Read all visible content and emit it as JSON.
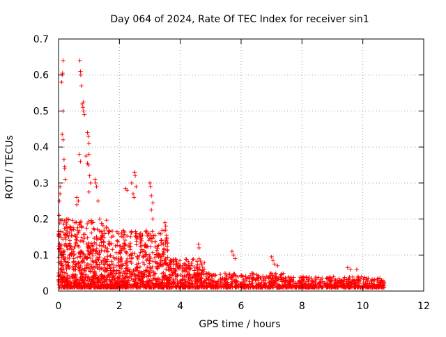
{
  "chart_data": {
    "type": "scatter",
    "title": "Day 064 of 2024, Rate Of TEC Index for receiver sin1",
    "xlabel": "GPS time / hours",
    "ylabel": "ROTI / TECUs",
    "xlim": [
      0,
      12
    ],
    "ylim": [
      0,
      0.7
    ],
    "xticks": [
      0,
      2,
      4,
      6,
      8,
      10,
      12
    ],
    "xtick_labels": [
      "0",
      "2",
      "4",
      "6",
      "8",
      "10",
      "12"
    ],
    "yticks": [
      0,
      0.1,
      0.2,
      0.3,
      0.4,
      0.5,
      0.6,
      0.7
    ],
    "ytick_labels": [
      "0",
      "0.1",
      "0.2",
      "0.3",
      "0.4",
      "0.5",
      "0.6",
      "0.7"
    ],
    "grid": true,
    "marker": "plus",
    "color": "#ff0000",
    "series": [
      {
        "name": "ROTI",
        "points": [
          [
            0.0,
            0.03
          ],
          [
            0.0,
            0.08
          ],
          [
            0.02,
            0.21
          ],
          [
            0.03,
            0.25
          ],
          [
            0.05,
            0.29
          ],
          [
            0.05,
            0.27
          ],
          [
            0.1,
            0.58
          ],
          [
            0.12,
            0.6
          ],
          [
            0.13,
            0.605
          ],
          [
            0.15,
            0.64
          ],
          [
            0.15,
            0.5
          ],
          [
            0.12,
            0.435
          ],
          [
            0.15,
            0.42
          ],
          [
            0.18,
            0.365
          ],
          [
            0.2,
            0.345
          ],
          [
            0.22,
            0.31
          ],
          [
            0.2,
            0.34
          ],
          [
            0.7,
            0.64
          ],
          [
            0.72,
            0.61
          ],
          [
            0.73,
            0.6
          ],
          [
            0.75,
            0.57
          ],
          [
            0.78,
            0.52
          ],
          [
            0.8,
            0.51
          ],
          [
            0.82,
            0.5
          ],
          [
            0.82,
            0.525
          ],
          [
            0.85,
            0.49
          ],
          [
            0.68,
            0.38
          ],
          [
            0.72,
            0.36
          ],
          [
            0.9,
            0.375
          ],
          [
            0.95,
            0.44
          ],
          [
            0.98,
            0.43
          ],
          [
            1.0,
            0.41
          ],
          [
            1.0,
            0.38
          ],
          [
            0.95,
            0.355
          ],
          [
            0.98,
            0.35
          ],
          [
            1.02,
            0.32
          ],
          [
            1.05,
            0.3
          ],
          [
            1.0,
            0.275
          ],
          [
            1.2,
            0.31
          ],
          [
            1.22,
            0.3
          ],
          [
            1.25,
            0.29
          ],
          [
            1.3,
            0.25
          ],
          [
            0.6,
            0.26
          ],
          [
            0.65,
            0.25
          ],
          [
            0.6,
            0.24
          ],
          [
            2.2,
            0.285
          ],
          [
            2.25,
            0.28
          ],
          [
            2.4,
            0.3
          ],
          [
            2.5,
            0.33
          ],
          [
            2.52,
            0.32
          ],
          [
            2.55,
            0.29
          ],
          [
            2.45,
            0.27
          ],
          [
            2.48,
            0.26
          ],
          [
            3.0,
            0.3
          ],
          [
            3.02,
            0.29
          ],
          [
            3.05,
            0.265
          ],
          [
            3.1,
            0.245
          ],
          [
            3.05,
            0.225
          ],
          [
            3.1,
            0.2
          ],
          [
            3.5,
            0.19
          ],
          [
            3.52,
            0.18
          ],
          [
            3.55,
            0.145
          ],
          [
            4.6,
            0.13
          ],
          [
            4.62,
            0.12
          ],
          [
            5.7,
            0.11
          ],
          [
            5.75,
            0.1
          ],
          [
            5.8,
            0.09
          ],
          [
            7.0,
            0.095
          ],
          [
            7.05,
            0.085
          ],
          [
            7.1,
            0.075
          ],
          [
            7.2,
            0.07
          ],
          [
            9.5,
            0.065
          ],
          [
            9.6,
            0.06
          ],
          [
            9.8,
            0.06
          ],
          [
            10.5,
            0.035
          ],
          [
            10.6,
            0.03
          ],
          [
            10.7,
            0.025
          ]
        ],
        "dense_clusters": [
          {
            "x_start": 0.0,
            "x_end": 1.6,
            "y_low": 0.01,
            "y_high": 0.2,
            "count": 700
          },
          {
            "x_start": 1.6,
            "x_end": 3.6,
            "y_low": 0.01,
            "y_high": 0.17,
            "count": 700
          },
          {
            "x_start": 3.6,
            "x_end": 4.8,
            "y_low": 0.01,
            "y_high": 0.09,
            "count": 300
          },
          {
            "x_start": 4.8,
            "x_end": 7.5,
            "y_low": 0.01,
            "y_high": 0.05,
            "count": 450
          },
          {
            "x_start": 7.5,
            "x_end": 10.7,
            "y_low": 0.01,
            "y_high": 0.04,
            "count": 500
          }
        ]
      }
    ]
  }
}
